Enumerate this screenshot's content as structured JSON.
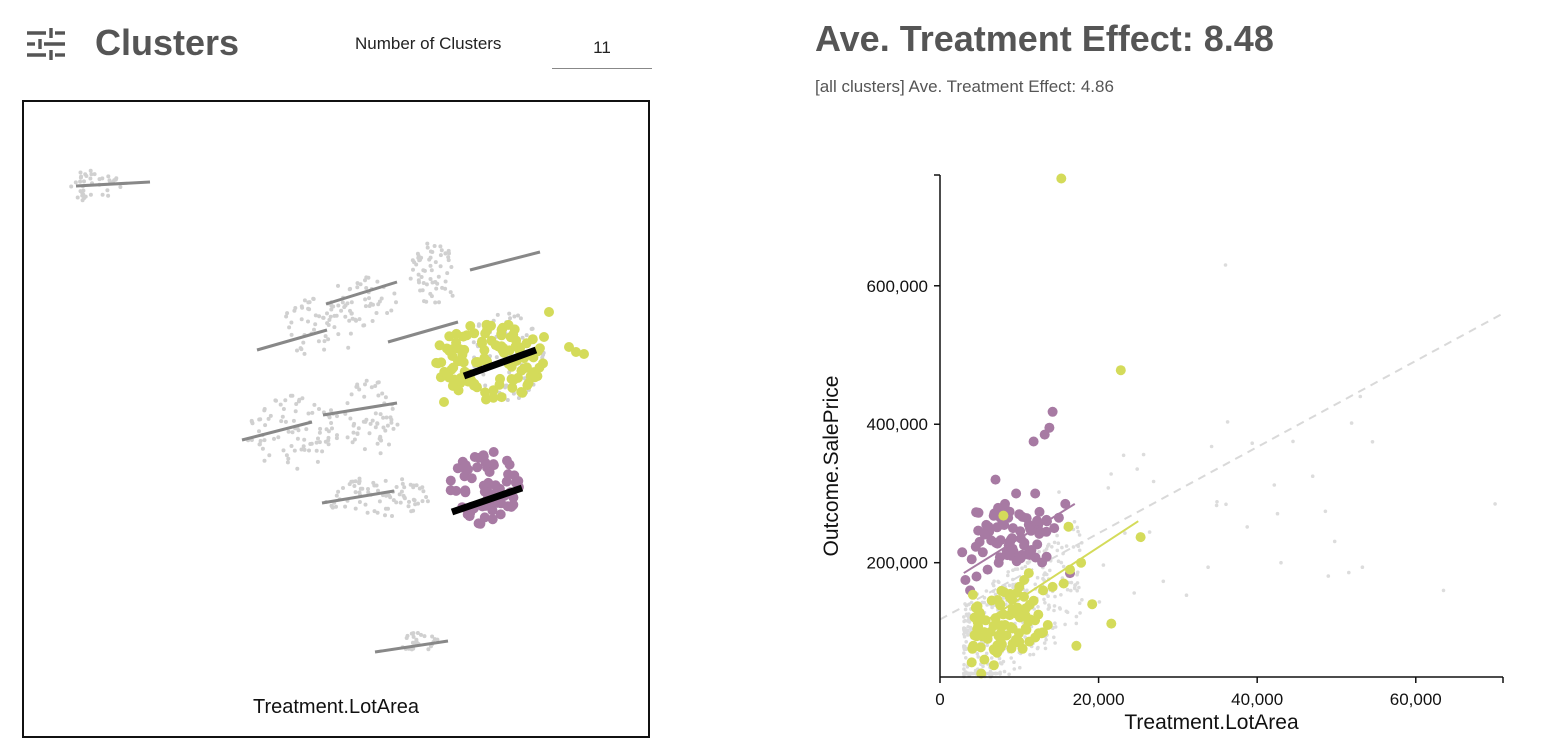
{
  "header": {
    "title": "Clusters",
    "num_clusters_label": "Number of Clusters",
    "num_clusters_value": "11"
  },
  "embedding": {
    "xlabel": "Treatment.LotArea"
  },
  "effect": {
    "title": "Ave. Treatment Effect: 8.48",
    "all_clusters": "[all clusters] Ave. Treatment Effect: 4.86"
  },
  "colors": {
    "selected_a": "#d4db5a",
    "selected_b": "#a77aa3",
    "background_points": "#d0d0d0",
    "cluster_line": "#888888",
    "selected_line": "#000000"
  },
  "chart_data": {
    "type": "scatter",
    "xlabel": "Treatment.LotArea",
    "ylabel": "Outcome.SalePrice",
    "xlim": [
      0,
      71000
    ],
    "ylim": [
      34900,
      760000
    ],
    "xticks": [
      {
        "value": 0,
        "label": "0"
      },
      {
        "value": 20000,
        "label": "20,000"
      },
      {
        "value": 40000,
        "label": "40,000"
      },
      {
        "value": 60000,
        "label": "60,000"
      }
    ],
    "yticks": [
      {
        "value": 200000,
        "label": "200,000"
      },
      {
        "value": 400000,
        "label": "400,000"
      },
      {
        "value": 600000,
        "label": "600,000"
      }
    ],
    "series": [
      {
        "name": "all",
        "color": "#d9d9d9",
        "trend": [
          [
            0,
            118000
          ],
          [
            71000,
            560000
          ]
        ],
        "trend_style": "dashed"
      },
      {
        "name": "cluster-purple",
        "color": "#a77aa3",
        "trend": [
          [
            3000,
            185000
          ],
          [
            17000,
            285000
          ]
        ],
        "points": [
          [
            2800,
            215000
          ],
          [
            3200,
            175000
          ],
          [
            4000,
            205000
          ],
          [
            5000,
            230000
          ],
          [
            6200,
            245000
          ],
          [
            7000,
            320000
          ],
          [
            7800,
            255000
          ],
          [
            8200,
            285000
          ],
          [
            8600,
            265000
          ],
          [
            9200,
            250000
          ],
          [
            9600,
            300000
          ],
          [
            10200,
            235000
          ],
          [
            10600,
            225000
          ],
          [
            11200,
            255000
          ],
          [
            11800,
            375000
          ],
          [
            12400,
            255000
          ],
          [
            13200,
            385000
          ],
          [
            13800,
            395000
          ],
          [
            14200,
            418000
          ],
          [
            15000,
            265000
          ],
          [
            15800,
            285000
          ],
          [
            16400,
            185000
          ],
          [
            9000,
            210000
          ],
          [
            7400,
            200000
          ],
          [
            6000,
            190000
          ],
          [
            4600,
            180000
          ],
          [
            12000,
            300000
          ],
          [
            10000,
            270000
          ],
          [
            8800,
            230000
          ],
          [
            13500,
            260000
          ],
          [
            11000,
            212000
          ],
          [
            3800,
            160000
          ],
          [
            5400,
            215000
          ],
          [
            14400,
            250000
          ]
        ]
      },
      {
        "name": "cluster-yellow",
        "color": "#d4db5a",
        "trend": [
          [
            5000,
            110000
          ],
          [
            25000,
            260000
          ]
        ],
        "points": [
          [
            15300,
            755000
          ],
          [
            22800,
            478000
          ],
          [
            25300,
            237000
          ],
          [
            16200,
            252000
          ],
          [
            17800,
            200000
          ],
          [
            19200,
            140000
          ],
          [
            21600,
            112000
          ],
          [
            17200,
            80000
          ],
          [
            4200,
            80000
          ],
          [
            5600,
            60000
          ],
          [
            6400,
            100000
          ],
          [
            7000,
            120000
          ],
          [
            7600,
            140000
          ],
          [
            8200,
            110000
          ],
          [
            8800,
            150000
          ],
          [
            9400,
            130000
          ],
          [
            10000,
            165000
          ],
          [
            10600,
            175000
          ],
          [
            11200,
            185000
          ],
          [
            11800,
            145000
          ],
          [
            12400,
            125000
          ],
          [
            13000,
            160000
          ],
          [
            6000,
            90000
          ],
          [
            7200,
            70000
          ],
          [
            8400,
            95000
          ],
          [
            9600,
            85000
          ],
          [
            10800,
            105000
          ],
          [
            12000,
            92000
          ],
          [
            5000,
            128000
          ],
          [
            4800,
            108000
          ],
          [
            9000,
            76000
          ],
          [
            6800,
            52000
          ],
          [
            7800,
            82000
          ],
          [
            14200,
            165000
          ],
          [
            15600,
            170000
          ],
          [
            16400,
            190000
          ],
          [
            8000,
            268000
          ],
          [
            4000,
            56000
          ],
          [
            5200,
            40000
          ],
          [
            10400,
            130000
          ],
          [
            11400,
            118000
          ],
          [
            13600,
            110000
          ],
          [
            12800,
            98000
          ]
        ]
      }
    ]
  }
}
